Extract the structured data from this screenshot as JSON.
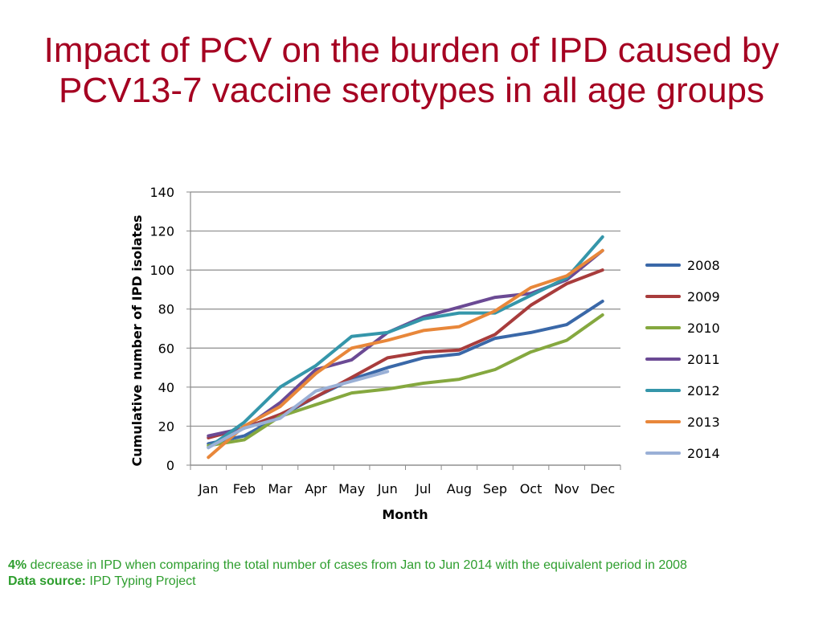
{
  "slide": {
    "title": "Impact of PCV on the burden of IPD caused by PCV13-7 vaccine serotypes in all age groups"
  },
  "footnote": {
    "stat_bold": "4%",
    "stat_text": "decrease in IPD when comparing the total number of cases from Jan to Jun 2014 with the equivalent period in 2008",
    "source_label": "Data source:",
    "source_value": "IPD Typing Project"
  },
  "chart_data": {
    "type": "line",
    "xlabel": "Month",
    "ylabel": "Cumulative number of IPD isolates",
    "categories": [
      "Jan",
      "Feb",
      "Mar",
      "Apr",
      "May",
      "Jun",
      "Jul",
      "Aug",
      "Sep",
      "Oct",
      "Nov",
      "Dec"
    ],
    "ylim": [
      0,
      140
    ],
    "yticks": [
      0,
      20,
      40,
      60,
      80,
      100,
      120,
      140
    ],
    "grid": true,
    "legend_position": "right",
    "series": [
      {
        "name": "2008",
        "color": "#3a68a8",
        "values": [
          11,
          15,
          25,
          35,
          44,
          50,
          55,
          57,
          65,
          68,
          72,
          84
        ]
      },
      {
        "name": "2009",
        "color": "#a83c3c",
        "values": [
          14,
          19,
          26,
          35,
          45,
          55,
          58,
          59,
          67,
          82,
          93,
          100
        ]
      },
      {
        "name": "2010",
        "color": "#85a83f",
        "values": [
          10,
          13,
          25,
          31,
          37,
          39,
          42,
          44,
          49,
          58,
          64,
          77
        ]
      },
      {
        "name": "2011",
        "color": "#6b4a94",
        "values": [
          15,
          19,
          32,
          49,
          54,
          68,
          76,
          81,
          86,
          88,
          95,
          110
        ]
      },
      {
        "name": "2012",
        "color": "#3596aa",
        "values": [
          9,
          22,
          40,
          51,
          66,
          68,
          75,
          78,
          78,
          87,
          96,
          117
        ]
      },
      {
        "name": "2013",
        "color": "#e8873a",
        "values": [
          4,
          20,
          30,
          47,
          60,
          64,
          69,
          71,
          79,
          91,
          97,
          110
        ]
      },
      {
        "name": "2014",
        "color": "#9ab0d6",
        "values": [
          9,
          19,
          24,
          38,
          43,
          48,
          null,
          null,
          null,
          null,
          null,
          null
        ]
      }
    ]
  }
}
